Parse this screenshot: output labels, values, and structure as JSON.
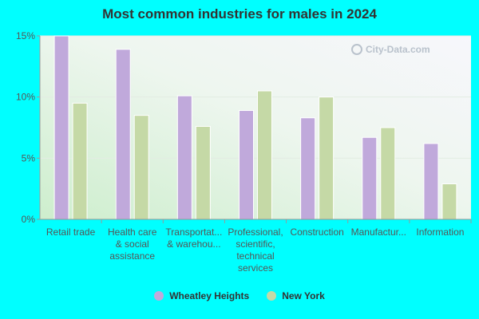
{
  "chart_data": {
    "type": "bar",
    "title": "Most common industries for males in 2024",
    "categories": [
      "Retail trade",
      "Health care\n& social\nassistance",
      "Transportat...\n& warehou...",
      "Professional,\nscientific,\ntechnical\nservices",
      "Construction",
      "Manufactur...",
      "Information"
    ],
    "series": [
      {
        "name": "Wheatley Heights",
        "color": "#c0a9db",
        "values": [
          15.0,
          13.9,
          10.1,
          8.9,
          8.3,
          6.7,
          6.2
        ]
      },
      {
        "name": "New York",
        "color": "#c5d9a6",
        "values": [
          9.5,
          8.5,
          7.6,
          10.5,
          10.0,
          7.5,
          2.9
        ]
      }
    ],
    "yticks": [
      "0%",
      "5%",
      "10%",
      "15%"
    ],
    "ylim": [
      0,
      15
    ],
    "grid": true,
    "legend_position": "bottom"
  },
  "watermark": {
    "text": "City-Data.com",
    "icon": "magnifier-icon"
  }
}
